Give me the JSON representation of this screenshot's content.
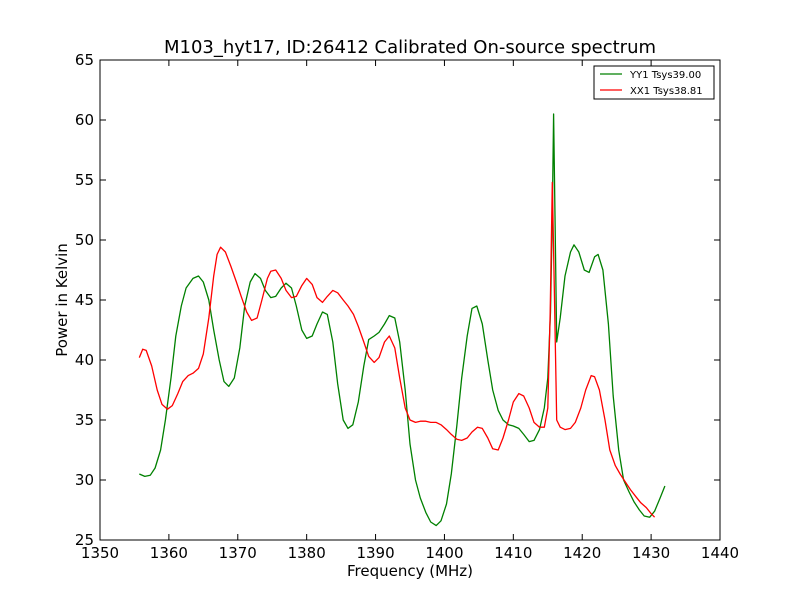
{
  "chart_data": {
    "type": "line",
    "title": "M103_hyt17, ID:26412 Calibrated On-source spectrum",
    "xlabel": "Frequency (MHz)",
    "ylabel": "Power in Kelvin",
    "xlim": [
      1350,
      1440
    ],
    "ylim": [
      25,
      65
    ],
    "xticks": [
      1350,
      1360,
      1370,
      1380,
      1390,
      1400,
      1410,
      1420,
      1430,
      1440
    ],
    "yticks": [
      25,
      30,
      35,
      40,
      45,
      50,
      55,
      60,
      65
    ],
    "grid": false,
    "legend_position": "top-right",
    "series": [
      {
        "name": "YY1 Tsys39.00",
        "color": "#008000",
        "points": [
          [
            1355.7,
            30.5
          ],
          [
            1356.5,
            30.3
          ],
          [
            1357.3,
            30.4
          ],
          [
            1358.0,
            31.0
          ],
          [
            1358.8,
            32.5
          ],
          [
            1359.5,
            35.0
          ],
          [
            1360.3,
            38.5
          ],
          [
            1361.0,
            42.0
          ],
          [
            1361.8,
            44.5
          ],
          [
            1362.5,
            46.0
          ],
          [
            1363.5,
            46.8
          ],
          [
            1364.3,
            47.0
          ],
          [
            1365.0,
            46.5
          ],
          [
            1365.8,
            45.0
          ],
          [
            1366.5,
            42.5
          ],
          [
            1367.3,
            40.0
          ],
          [
            1368.0,
            38.2
          ],
          [
            1368.7,
            37.8
          ],
          [
            1369.5,
            38.5
          ],
          [
            1370.3,
            41.0
          ],
          [
            1371.0,
            44.5
          ],
          [
            1371.8,
            46.5
          ],
          [
            1372.5,
            47.2
          ],
          [
            1373.3,
            46.8
          ],
          [
            1374.0,
            45.8
          ],
          [
            1374.8,
            45.2
          ],
          [
            1375.5,
            45.3
          ],
          [
            1376.3,
            46.0
          ],
          [
            1377.0,
            46.4
          ],
          [
            1377.8,
            46.0
          ],
          [
            1378.5,
            44.5
          ],
          [
            1379.3,
            42.5
          ],
          [
            1380.0,
            41.8
          ],
          [
            1380.8,
            42.0
          ],
          [
            1381.5,
            43.0
          ],
          [
            1382.3,
            44.0
          ],
          [
            1383.0,
            43.8
          ],
          [
            1383.8,
            41.5
          ],
          [
            1384.5,
            38.0
          ],
          [
            1385.3,
            35.0
          ],
          [
            1386.0,
            34.3
          ],
          [
            1386.7,
            34.6
          ],
          [
            1387.5,
            36.5
          ],
          [
            1388.3,
            39.5
          ],
          [
            1389.0,
            41.7
          ],
          [
            1389.8,
            42.0
          ],
          [
            1390.5,
            42.3
          ],
          [
            1391.3,
            43.0
          ],
          [
            1392.0,
            43.7
          ],
          [
            1392.8,
            43.5
          ],
          [
            1393.5,
            41.5
          ],
          [
            1394.3,
            37.5
          ],
          [
            1395.0,
            33.0
          ],
          [
            1395.8,
            30.0
          ],
          [
            1396.5,
            28.5
          ],
          [
            1397.3,
            27.3
          ],
          [
            1398.0,
            26.5
          ],
          [
            1398.8,
            26.2
          ],
          [
            1399.5,
            26.6
          ],
          [
            1400.3,
            28.0
          ],
          [
            1401.0,
            30.5
          ],
          [
            1401.8,
            34.5
          ],
          [
            1402.5,
            38.5
          ],
          [
            1403.3,
            42.0
          ],
          [
            1404.0,
            44.3
          ],
          [
            1404.7,
            44.5
          ],
          [
            1405.5,
            43.0
          ],
          [
            1406.3,
            40.0
          ],
          [
            1407.0,
            37.5
          ],
          [
            1407.8,
            35.8
          ],
          [
            1408.5,
            35.0
          ],
          [
            1409.3,
            34.6
          ],
          [
            1410.0,
            34.5
          ],
          [
            1410.8,
            34.3
          ],
          [
            1411.5,
            33.8
          ],
          [
            1412.3,
            33.2
          ],
          [
            1413.0,
            33.3
          ],
          [
            1413.8,
            34.2
          ],
          [
            1414.5,
            36.0
          ],
          [
            1415.0,
            38.5
          ],
          [
            1415.4,
            44.0
          ],
          [
            1415.65,
            52.0
          ],
          [
            1415.85,
            60.5
          ],
          [
            1416.05,
            52.0
          ],
          [
            1416.3,
            41.5
          ],
          [
            1416.8,
            43.5
          ],
          [
            1417.5,
            47.0
          ],
          [
            1418.3,
            49.0
          ],
          [
            1418.8,
            49.6
          ],
          [
            1419.5,
            49.0
          ],
          [
            1420.3,
            47.5
          ],
          [
            1421.0,
            47.3
          ],
          [
            1421.8,
            48.6
          ],
          [
            1422.3,
            48.8
          ],
          [
            1423.0,
            47.5
          ],
          [
            1423.8,
            43.0
          ],
          [
            1424.5,
            37.0
          ],
          [
            1425.3,
            32.5
          ],
          [
            1426.0,
            30.0
          ],
          [
            1426.8,
            29.0
          ],
          [
            1427.5,
            28.2
          ],
          [
            1428.3,
            27.5
          ],
          [
            1429.0,
            27.0
          ],
          [
            1429.8,
            26.9
          ],
          [
            1430.5,
            27.4
          ],
          [
            1431.3,
            28.5
          ],
          [
            1432.0,
            29.5
          ]
        ]
      },
      {
        "name": "XX1 Tsys38.81",
        "color": "#ff0000",
        "points": [
          [
            1355.7,
            40.2
          ],
          [
            1356.2,
            40.9
          ],
          [
            1356.7,
            40.8
          ],
          [
            1357.5,
            39.5
          ],
          [
            1358.3,
            37.5
          ],
          [
            1359.0,
            36.3
          ],
          [
            1359.8,
            35.9
          ],
          [
            1360.5,
            36.2
          ],
          [
            1361.3,
            37.2
          ],
          [
            1362.0,
            38.2
          ],
          [
            1362.8,
            38.7
          ],
          [
            1363.5,
            38.9
          ],
          [
            1364.3,
            39.3
          ],
          [
            1365.0,
            40.5
          ],
          [
            1365.8,
            43.5
          ],
          [
            1366.5,
            47.0
          ],
          [
            1367.0,
            48.8
          ],
          [
            1367.5,
            49.4
          ],
          [
            1368.2,
            49.0
          ],
          [
            1369.0,
            47.8
          ],
          [
            1369.8,
            46.5
          ],
          [
            1370.5,
            45.3
          ],
          [
            1371.3,
            44.0
          ],
          [
            1372.0,
            43.3
          ],
          [
            1372.8,
            43.5
          ],
          [
            1373.5,
            45.0
          ],
          [
            1374.3,
            46.8
          ],
          [
            1374.8,
            47.4
          ],
          [
            1375.5,
            47.5
          ],
          [
            1376.3,
            46.8
          ],
          [
            1377.0,
            45.8
          ],
          [
            1377.8,
            45.2
          ],
          [
            1378.5,
            45.3
          ],
          [
            1379.3,
            46.2
          ],
          [
            1380.0,
            46.8
          ],
          [
            1380.8,
            46.3
          ],
          [
            1381.5,
            45.2
          ],
          [
            1382.3,
            44.8
          ],
          [
            1383.0,
            45.3
          ],
          [
            1383.8,
            45.8
          ],
          [
            1384.5,
            45.6
          ],
          [
            1385.3,
            45.0
          ],
          [
            1386.0,
            44.5
          ],
          [
            1386.8,
            43.8
          ],
          [
            1387.5,
            42.8
          ],
          [
            1388.3,
            41.5
          ],
          [
            1389.0,
            40.3
          ],
          [
            1389.8,
            39.8
          ],
          [
            1390.5,
            40.2
          ],
          [
            1391.3,
            41.5
          ],
          [
            1392.0,
            42.0
          ],
          [
            1392.8,
            41.0
          ],
          [
            1393.5,
            38.5
          ],
          [
            1394.3,
            36.0
          ],
          [
            1395.0,
            35.0
          ],
          [
            1395.8,
            34.8
          ],
          [
            1396.5,
            34.9
          ],
          [
            1397.3,
            34.9
          ],
          [
            1398.0,
            34.8
          ],
          [
            1398.8,
            34.8
          ],
          [
            1399.5,
            34.6
          ],
          [
            1400.3,
            34.2
          ],
          [
            1401.0,
            33.8
          ],
          [
            1401.8,
            33.4
          ],
          [
            1402.5,
            33.3
          ],
          [
            1403.3,
            33.5
          ],
          [
            1404.0,
            34.0
          ],
          [
            1404.8,
            34.4
          ],
          [
            1405.5,
            34.3
          ],
          [
            1406.3,
            33.5
          ],
          [
            1407.0,
            32.6
          ],
          [
            1407.8,
            32.5
          ],
          [
            1408.5,
            33.5
          ],
          [
            1409.3,
            35.0
          ],
          [
            1410.0,
            36.5
          ],
          [
            1410.8,
            37.2
          ],
          [
            1411.5,
            37.0
          ],
          [
            1412.3,
            36.0
          ],
          [
            1413.0,
            34.8
          ],
          [
            1413.8,
            34.4
          ],
          [
            1414.5,
            34.4
          ],
          [
            1415.0,
            36.0
          ],
          [
            1415.35,
            44.0
          ],
          [
            1415.65,
            54.8
          ],
          [
            1415.95,
            46.0
          ],
          [
            1416.3,
            35.0
          ],
          [
            1416.8,
            34.4
          ],
          [
            1417.5,
            34.2
          ],
          [
            1418.3,
            34.3
          ],
          [
            1419.0,
            34.8
          ],
          [
            1419.8,
            36.0
          ],
          [
            1420.5,
            37.5
          ],
          [
            1421.3,
            38.7
          ],
          [
            1421.8,
            38.6
          ],
          [
            1422.5,
            37.5
          ],
          [
            1423.3,
            35.0
          ],
          [
            1424.0,
            32.5
          ],
          [
            1424.8,
            31.2
          ],
          [
            1425.5,
            30.5
          ],
          [
            1426.3,
            29.8
          ],
          [
            1427.0,
            29.2
          ],
          [
            1427.8,
            28.6
          ],
          [
            1428.5,
            28.1
          ],
          [
            1429.3,
            27.7
          ],
          [
            1430.0,
            27.2
          ],
          [
            1430.5,
            26.9
          ]
        ]
      }
    ]
  }
}
